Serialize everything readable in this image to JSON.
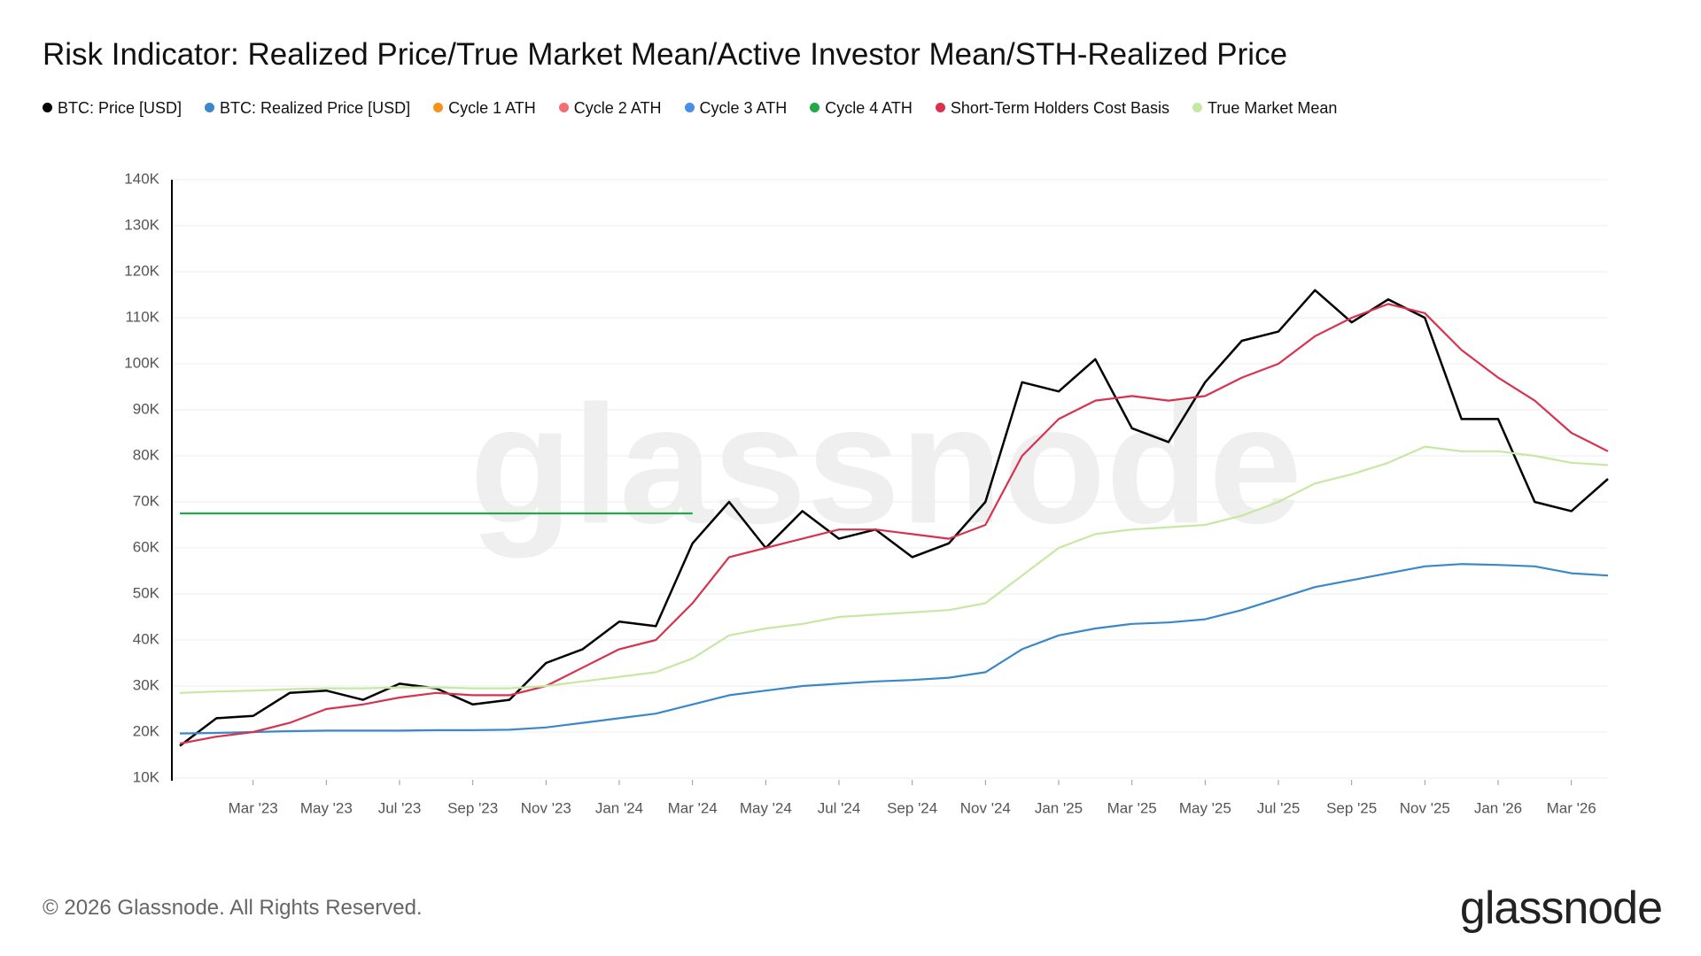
{
  "chart_data": {
    "type": "line",
    "title": "Risk Indicator: Realized Price/True Market Mean/Active Investor Mean/STH-Realized Price",
    "watermark": "glassnode",
    "x": [
      "2023-01",
      "2023-02",
      "2023-03",
      "2023-04",
      "2023-05",
      "2023-06",
      "2023-07",
      "2023-08",
      "2023-09",
      "2023-10",
      "2023-11",
      "2023-12",
      "2024-01",
      "2024-02",
      "2024-03",
      "2024-04",
      "2024-05",
      "2024-06",
      "2024-07",
      "2024-08",
      "2024-09",
      "2024-10",
      "2024-11",
      "2024-12",
      "2025-01",
      "2025-02",
      "2025-03",
      "2025-04",
      "2025-05",
      "2025-06",
      "2025-07",
      "2025-08",
      "2025-09",
      "2025-10",
      "2025-11",
      "2025-12",
      "2026-01",
      "2026-02",
      "2026-03",
      "2026-04"
    ],
    "xlim": [
      "2023-01",
      "2026-04"
    ],
    "xticks": [
      {
        "value": "2023-03",
        "label": "Mar '23"
      },
      {
        "value": "2023-05",
        "label": "May '23"
      },
      {
        "value": "2023-07",
        "label": "Jul '23"
      },
      {
        "value": "2023-09",
        "label": "Sep '23"
      },
      {
        "value": "2023-11",
        "label": "Nov '23"
      },
      {
        "value": "2024-01",
        "label": "Jan '24"
      },
      {
        "value": "2024-03",
        "label": "Mar '24"
      },
      {
        "value": "2024-05",
        "label": "May '24"
      },
      {
        "value": "2024-07",
        "label": "Jul '24"
      },
      {
        "value": "2024-09",
        "label": "Sep '24"
      },
      {
        "value": "2024-11",
        "label": "Nov '24"
      },
      {
        "value": "2025-01",
        "label": "Jan '25"
      },
      {
        "value": "2025-03",
        "label": "Mar '25"
      },
      {
        "value": "2025-05",
        "label": "May '25"
      },
      {
        "value": "2025-07",
        "label": "Jul '25"
      },
      {
        "value": "2025-09",
        "label": "Sep '25"
      },
      {
        "value": "2025-11",
        "label": "Nov '25"
      },
      {
        "value": "2026-01",
        "label": "Jan '26"
      },
      {
        "value": "2026-03",
        "label": "Mar '26"
      }
    ],
    "ylim": [
      10000,
      140000
    ],
    "yticks": [
      {
        "value": 10000,
        "label": "10K"
      },
      {
        "value": 20000,
        "label": "20K"
      },
      {
        "value": 30000,
        "label": "30K"
      },
      {
        "value": 40000,
        "label": "40K"
      },
      {
        "value": 50000,
        "label": "50K"
      },
      {
        "value": 60000,
        "label": "60K"
      },
      {
        "value": 70000,
        "label": "70K"
      },
      {
        "value": 80000,
        "label": "80K"
      },
      {
        "value": 90000,
        "label": "90K"
      },
      {
        "value": 100000,
        "label": "100K"
      },
      {
        "value": 110000,
        "label": "110K"
      },
      {
        "value": 120000,
        "label": "120K"
      },
      {
        "value": 130000,
        "label": "130K"
      },
      {
        "value": 140000,
        "label": "140K"
      }
    ],
    "grid": true,
    "series": [
      {
        "name": "BTC: Price [USD]",
        "color": "#000000",
        "values": [
          17000,
          23000,
          23500,
          28500,
          29000,
          27000,
          30500,
          29500,
          26000,
          27000,
          35000,
          38000,
          44000,
          43000,
          61000,
          70000,
          60000,
          68000,
          62000,
          64000,
          58000,
          61000,
          70000,
          96000,
          94000,
          101000,
          86000,
          83000,
          96000,
          105000,
          107000,
          116000,
          109000,
          114000,
          110000,
          88000,
          88000,
          70000,
          68000,
          75000
        ]
      },
      {
        "name": "BTC: Realized Price [USD]",
        "color": "#3a87c9",
        "values": [
          19700,
          19800,
          20000,
          20200,
          20300,
          20300,
          20300,
          20400,
          20400,
          20500,
          21000,
          22000,
          23000,
          24000,
          26000,
          28000,
          29000,
          30000,
          30500,
          31000,
          31300,
          31800,
          33000,
          38000,
          41000,
          42500,
          43500,
          43800,
          44500,
          46500,
          49000,
          51500,
          53000,
          54500,
          56000,
          56500,
          56300,
          56000,
          54500,
          54000
        ]
      },
      {
        "name": "Cycle 1 ATH",
        "color": "#f7931a",
        "values": [
          null,
          null,
          null,
          null,
          null,
          null,
          null,
          null,
          null,
          null,
          null,
          null,
          null,
          null,
          null,
          null,
          null,
          null,
          null,
          null,
          null,
          null,
          null,
          null,
          null,
          null,
          null,
          null,
          null,
          null,
          null,
          null,
          null,
          null,
          null,
          null,
          null,
          null,
          null,
          null
        ]
      },
      {
        "name": "Cycle 2 ATH",
        "color": "#f36e70",
        "values": [
          null,
          null,
          null,
          null,
          null,
          null,
          null,
          null,
          null,
          null,
          null,
          null,
          null,
          null,
          null,
          null,
          null,
          null,
          null,
          null,
          null,
          null,
          null,
          null,
          null,
          null,
          null,
          null,
          null,
          null,
          null,
          null,
          null,
          null,
          null,
          null,
          null,
          null,
          null,
          null
        ]
      },
      {
        "name": "Cycle 3 ATH",
        "color": "#4a8fe7",
        "values": [
          null,
          null,
          null,
          null,
          null,
          null,
          null,
          null,
          null,
          null,
          null,
          null,
          null,
          null,
          null,
          null,
          null,
          null,
          null,
          null,
          null,
          null,
          null,
          null,
          null,
          null,
          null,
          null,
          null,
          null,
          null,
          null,
          null,
          null,
          null,
          null,
          null,
          null,
          null,
          null
        ]
      },
      {
        "name": "Cycle 4 ATH",
        "color": "#22a845",
        "values": [
          67500,
          67500,
          67500,
          67500,
          67500,
          67500,
          67500,
          67500,
          67500,
          67500,
          67500,
          67500,
          67500,
          67500,
          67500,
          null,
          null,
          null,
          null,
          null,
          null,
          null,
          null,
          null,
          null,
          null,
          null,
          null,
          null,
          null,
          null,
          null,
          null,
          null,
          null,
          null,
          null,
          null,
          null,
          null
        ]
      },
      {
        "name": "Short-Term Holders Cost Basis",
        "color": "#d8324f",
        "values": [
          17500,
          19000,
          20000,
          22000,
          25000,
          26000,
          27500,
          28500,
          28000,
          28000,
          30000,
          34000,
          38000,
          40000,
          48000,
          58000,
          60000,
          62000,
          64000,
          64000,
          63000,
          62000,
          65000,
          80000,
          88000,
          92000,
          93000,
          92000,
          93000,
          97000,
          100000,
          106000,
          110000,
          113000,
          111000,
          103000,
          97000,
          92000,
          85000,
          81000
        ]
      },
      {
        "name": "True Market Mean",
        "color": "#c6e8a2",
        "values": [
          28500,
          28800,
          29000,
          29300,
          29500,
          29500,
          29700,
          29700,
          29500,
          29500,
          30000,
          31000,
          32000,
          33000,
          36000,
          41000,
          42500,
          43500,
          45000,
          45500,
          46000,
          46500,
          48000,
          54000,
          60000,
          63000,
          64000,
          64500,
          65000,
          67000,
          70000,
          74000,
          76000,
          78500,
          82000,
          81000,
          81000,
          80000,
          78500,
          78000
        ]
      }
    ]
  },
  "copyright": "© 2026 Glassnode. All Rights Reserved.",
  "logo": "glassnode"
}
